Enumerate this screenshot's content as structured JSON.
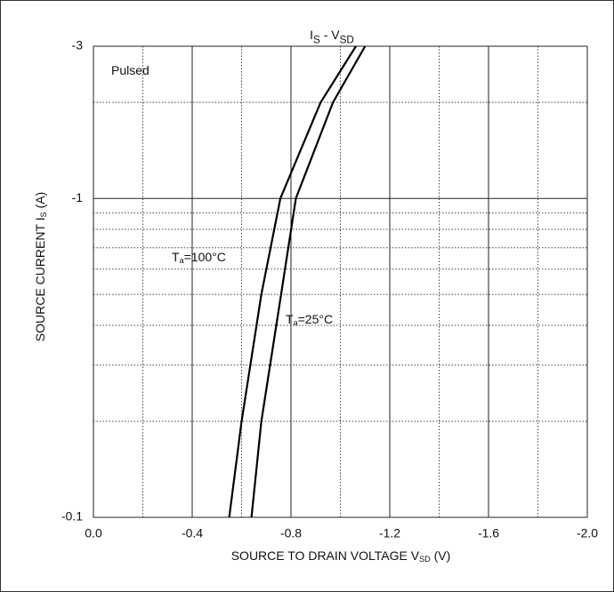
{
  "chart_data": {
    "type": "line",
    "title": [
      {
        "t": "I"
      },
      {
        "t": "S",
        "sub": true
      },
      {
        "t": " - V"
      },
      {
        "t": "SD",
        "sub": true
      }
    ],
    "x_label": [
      {
        "t": "SOURCE TO DRAIN VOLTAGE V"
      },
      {
        "t": "SD",
        "sub": true
      },
      {
        "t": " (V)"
      }
    ],
    "y_label": [
      {
        "t": "SOURCE CURRENT I"
      },
      {
        "t": "S",
        "sub": true
      },
      {
        "t": " (A)"
      }
    ],
    "annotations": [
      [
        {
          "t": "Pulsed"
        }
      ],
      [
        {
          "t": "T"
        },
        {
          "t": "a",
          "sub": true
        },
        {
          "t": "=100°C"
        }
      ],
      [
        {
          "t": "T"
        },
        {
          "t": "a",
          "sub": true
        },
        {
          "t": "=25°C"
        }
      ]
    ],
    "xlim": [
      0,
      -2
    ],
    "xticks": [
      {
        "value": 0,
        "label": "0.0"
      },
      -0.4,
      -0.8,
      -1.2,
      -1.6,
      {
        "value": -2,
        "label": "-2.0"
      }
    ],
    "x_minor_grid": [
      -0.2,
      -0.6,
      -1,
      -1.4,
      -1.8
    ],
    "ylim": [
      -0.1,
      -3
    ],
    "yticks": [
      -0.1,
      -1,
      -3
    ],
    "y_minor_grid": [
      -0.2,
      -0.3,
      -0.4,
      -0.5,
      -0.6,
      -0.7,
      -0.8,
      -0.9,
      -2
    ],
    "ylog": true,
    "grid": true,
    "series": [
      {
        "color": "#000000",
        "x": [
          -0.55,
          -0.6,
          -0.68,
          -0.757,
          -0.92,
          -1.063
        ],
        "values": [
          -0.1,
          -0.2,
          -0.5,
          -1,
          -2,
          -3
        ]
      },
      {
        "color": "#000000",
        "x": [
          -0.64,
          -0.68,
          -0.76,
          -0.82,
          -0.97,
          -1.1
        ],
        "values": [
          -0.1,
          -0.2,
          -0.5,
          -1,
          -2,
          -3
        ]
      }
    ]
  }
}
